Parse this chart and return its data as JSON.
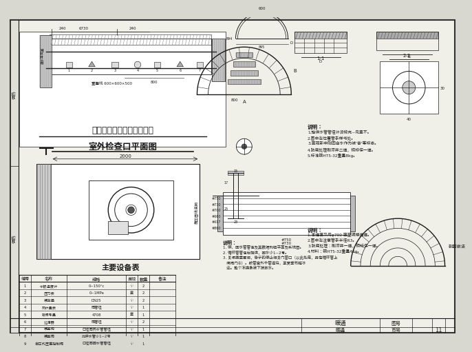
{
  "bg_color": "#d8d8d0",
  "paper_color": "#f0f0e8",
  "line_color": "#1a1a1a",
  "dark_fill": "#555555",
  "hatch_color": "#888888",
  "title1": "甲型热水采暖系统入口装置",
  "title2": "室外检查口平面图",
  "table_title": "主要设备表",
  "table_headers": [
    "编号",
    "名称",
    "规格",
    "单位",
    "数量",
    "备注"
  ],
  "table_rows": [
    [
      "1",
      "水银温度计",
      "0~150°c",
      "个",
      "2",
      ""
    ],
    [
      "2",
      "压力表",
      "0~1MPa",
      "套",
      "2",
      ""
    ],
    [
      "3",
      "闸连通",
      "DN25",
      "个",
      "2",
      ""
    ],
    [
      "4",
      "热计量表",
      "同管径",
      "个",
      "1",
      ""
    ],
    [
      "5",
      "锁闭考量",
      "4708",
      "套",
      "1",
      ""
    ],
    [
      "6",
      "过滤器",
      "同管径",
      "个",
      "2",
      ""
    ],
    [
      "7",
      "闸室阀",
      "口径同热水管管径",
      "个",
      "1",
      ""
    ],
    [
      "8",
      "闸室阀",
      "比供水管小1~2号",
      "个",
      "1",
      ""
    ],
    [
      "9",
      "自立式压差控制阀",
      "口径同回水管管径",
      "个",
      "1",
      ""
    ]
  ],
  "note1_lines": [
    "说明：",
    "1.输供水管管径计设候允~元章不。",
    "2.图中左位置管手样书处。",
    "3.直观新中刚回白水作为被'奋'等标志。",
    "4.防腐处理刷漆并二道，铜标保一道。",
    "5.标准钢HT5-32重量8kg。"
  ],
  "note2_lines": [
    "说明：",
    "1. 供、回水管管径及其数据到钮平面及系统图。",
    "2. 循环管管径后提供，回水小1~2号。",
    "3. 关闭换季房间，告示的停止相关门窗口（以此处用，另在循环管上",
    "   闸阀门②）。胶管宝外千管道将，享夏季节越冰",
    "   还。整个冻换象被下按放水。"
  ],
  "note3_lines": [
    "说明：",
    "1.本道直采用φ700 直至锅楼道道。",
    "2.图中左注意管手半径R3。",
    "3.防腐处理：刷漆并一道，铜标保一道。",
    "4.材料：钢HT5-32重量46g。"
  ],
  "bottom_label": "暖通",
  "bottom_page": "11",
  "dim_labels": [
    "240",
    "6730",
    "240",
    "2000",
    "800",
    "600",
    "894",
    "895"
  ]
}
